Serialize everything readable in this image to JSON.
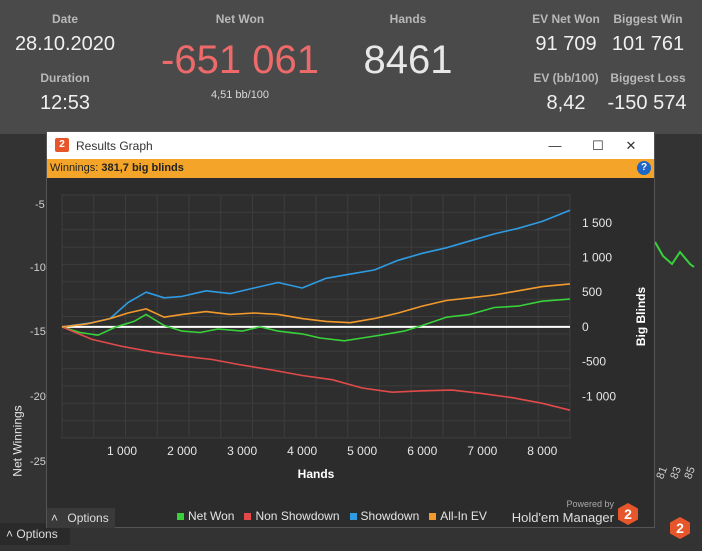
{
  "stats": {
    "date_label": "Date",
    "date_value": "28.10.2020",
    "duration_label": "Duration",
    "duration_value": "12:53",
    "net_won_label": "Net Won",
    "net_won_value": "-651 061",
    "bb_per_100": "4,51 bb/100",
    "hands_label": "Hands",
    "hands_value": "8461",
    "ev_net_won_label": "EV Net Won",
    "ev_net_won_value": "91 709",
    "ev_bb_label": "EV (bb/100)",
    "ev_bb_value": "8,42",
    "biggest_win_label": "Biggest Win",
    "biggest_win_value": "101 761",
    "biggest_loss_label": "Biggest Loss",
    "biggest_loss_value": "-150 574"
  },
  "background": {
    "axis_label": "Net Winnings",
    "y_ticks": [
      "-5",
      "-10",
      "-15",
      "-20",
      "-25"
    ],
    "x_ticks": [
      "81",
      "83",
      "85"
    ],
    "options_label": "Options"
  },
  "window": {
    "title": "Results Graph",
    "logo_text": "2",
    "minimize_glyph": "—",
    "maximize_glyph": "☐",
    "close_glyph": "✕",
    "winnings_label": "Winnings:",
    "winnings_value": "381,7 big blinds",
    "help_glyph": "?",
    "options_label": "Options",
    "options_glyph": "˄",
    "powered_by": "Powered by",
    "brand": "Hold'em Manager",
    "colors": {
      "net_won": "#38d13a",
      "non_showdown": "#e24a4a",
      "showdown": "#2f9be3",
      "all_in_ev": "#f39a2c"
    }
  },
  "chart_data": {
    "type": "line",
    "xlabel": "Hands",
    "ylabel": "Big Blinds",
    "xlim": [
      0,
      8461
    ],
    "ylim": [
      -1600,
      1900
    ],
    "x_ticks": [
      1000,
      2000,
      3000,
      4000,
      5000,
      6000,
      7000,
      8000
    ],
    "x_tick_labels": [
      "1 000",
      "2 000",
      "3 000",
      "4 000",
      "5 000",
      "6 000",
      "7 000",
      "8 000"
    ],
    "y_ticks": [
      -1000,
      -500,
      0,
      500,
      1000,
      1500
    ],
    "y_tick_labels": [
      "-1 000",
      "-500",
      "0",
      "500",
      "1 000",
      "1 500"
    ],
    "series": [
      {
        "name": "Net Won",
        "color": "#38d13a",
        "x": [
          0,
          300,
          600,
          900,
          1200,
          1400,
          1700,
          2000,
          2300,
          2600,
          3000,
          3300,
          3600,
          4000,
          4300,
          4700,
          5000,
          5300,
          5700,
          6000,
          6400,
          6800,
          7200,
          7600,
          8000,
          8461
        ],
        "y": [
          0,
          -80,
          -120,
          0,
          80,
          180,
          20,
          -60,
          -80,
          -30,
          -60,
          0,
          -60,
          -100,
          -160,
          -200,
          -160,
          -120,
          -60,
          20,
          140,
          180,
          280,
          300,
          370,
          400
        ]
      },
      {
        "name": "Non Showdown",
        "color": "#e24a4a",
        "x": [
          0,
          500,
          1000,
          1500,
          2000,
          2500,
          3000,
          3500,
          4000,
          4500,
          5000,
          5500,
          6000,
          6500,
          7000,
          7500,
          8000,
          8461
        ],
        "y": [
          0,
          -180,
          -280,
          -360,
          -420,
          -470,
          -550,
          -620,
          -700,
          -760,
          -880,
          -940,
          -920,
          -910,
          -960,
          -1020,
          -1100,
          -1200
        ]
      },
      {
        "name": "Showdown",
        "color": "#2f9be3",
        "x": [
          0,
          500,
          800,
          1100,
          1400,
          1700,
          2000,
          2400,
          2800,
          3200,
          3600,
          4000,
          4400,
          4800,
          5200,
          5600,
          6000,
          6400,
          6800,
          7200,
          7600,
          8000,
          8461
        ],
        "y": [
          0,
          60,
          120,
          350,
          500,
          420,
          440,
          520,
          480,
          560,
          640,
          560,
          700,
          760,
          820,
          960,
          1060,
          1140,
          1240,
          1340,
          1420,
          1520,
          1680
        ]
      },
      {
        "name": "All-In EV",
        "color": "#f39a2c",
        "x": [
          0,
          400,
          800,
          1100,
          1400,
          1700,
          2000,
          2400,
          2800,
          3200,
          3600,
          4000,
          4400,
          4800,
          5200,
          5600,
          6000,
          6400,
          6800,
          7200,
          7600,
          8000,
          8461
        ],
        "y": [
          0,
          40,
          120,
          200,
          260,
          140,
          180,
          220,
          180,
          200,
          180,
          120,
          80,
          60,
          120,
          200,
          300,
          380,
          420,
          460,
          520,
          580,
          620
        ]
      }
    ]
  }
}
